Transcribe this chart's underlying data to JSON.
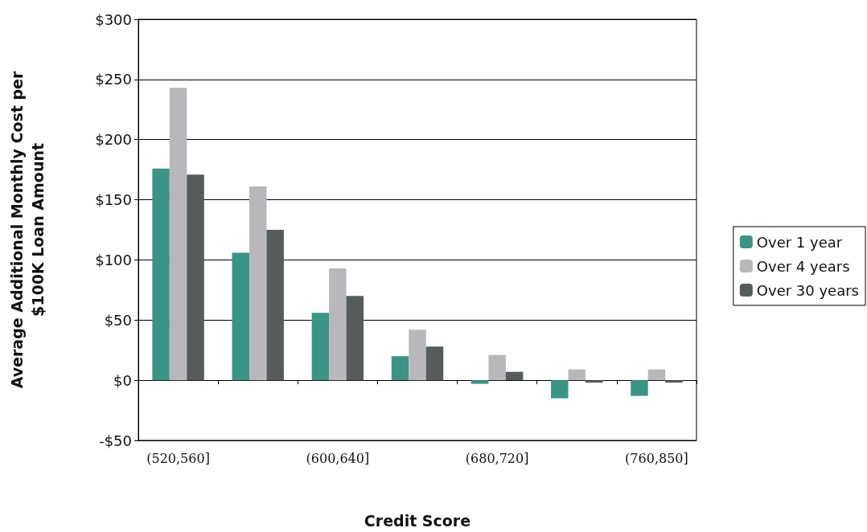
{
  "chart_data": {
    "type": "bar",
    "xlabel": "Credit Score",
    "ylabel": "Average Additional Monthly Cost per\n$100K Loan Amount",
    "categories": [
      "(520,560]",
      null,
      "(600,640]",
      null,
      "(680,720]",
      null,
      "(760,850]"
    ],
    "series": [
      {
        "name": "Over 1 year",
        "color": "#3a9585",
        "values": [
          176,
          106,
          56,
          20,
          -3,
          -15,
          -13
        ]
      },
      {
        "name": "Over 4 years",
        "color": "#b8b7bb",
        "values": [
          243,
          161,
          93,
          42,
          21,
          9,
          9
        ]
      },
      {
        "name": "Over 30 years",
        "color": "#565b5c",
        "values": [
          171,
          125,
          70,
          28,
          7,
          -2,
          -2
        ]
      }
    ],
    "ylim": [
      -50,
      300
    ],
    "yticks": [
      {
        "value": -50,
        "label": "-$50"
      },
      {
        "value": 0,
        "label": "$0"
      },
      {
        "value": 50,
        "label": "$50"
      },
      {
        "value": 100,
        "label": "$100"
      },
      {
        "value": 150,
        "label": "$150"
      },
      {
        "value": 200,
        "label": "$200"
      },
      {
        "value": 250,
        "label": "$250"
      },
      {
        "value": 300,
        "label": "$300"
      }
    ],
    "grid": "y",
    "legend": "right"
  }
}
